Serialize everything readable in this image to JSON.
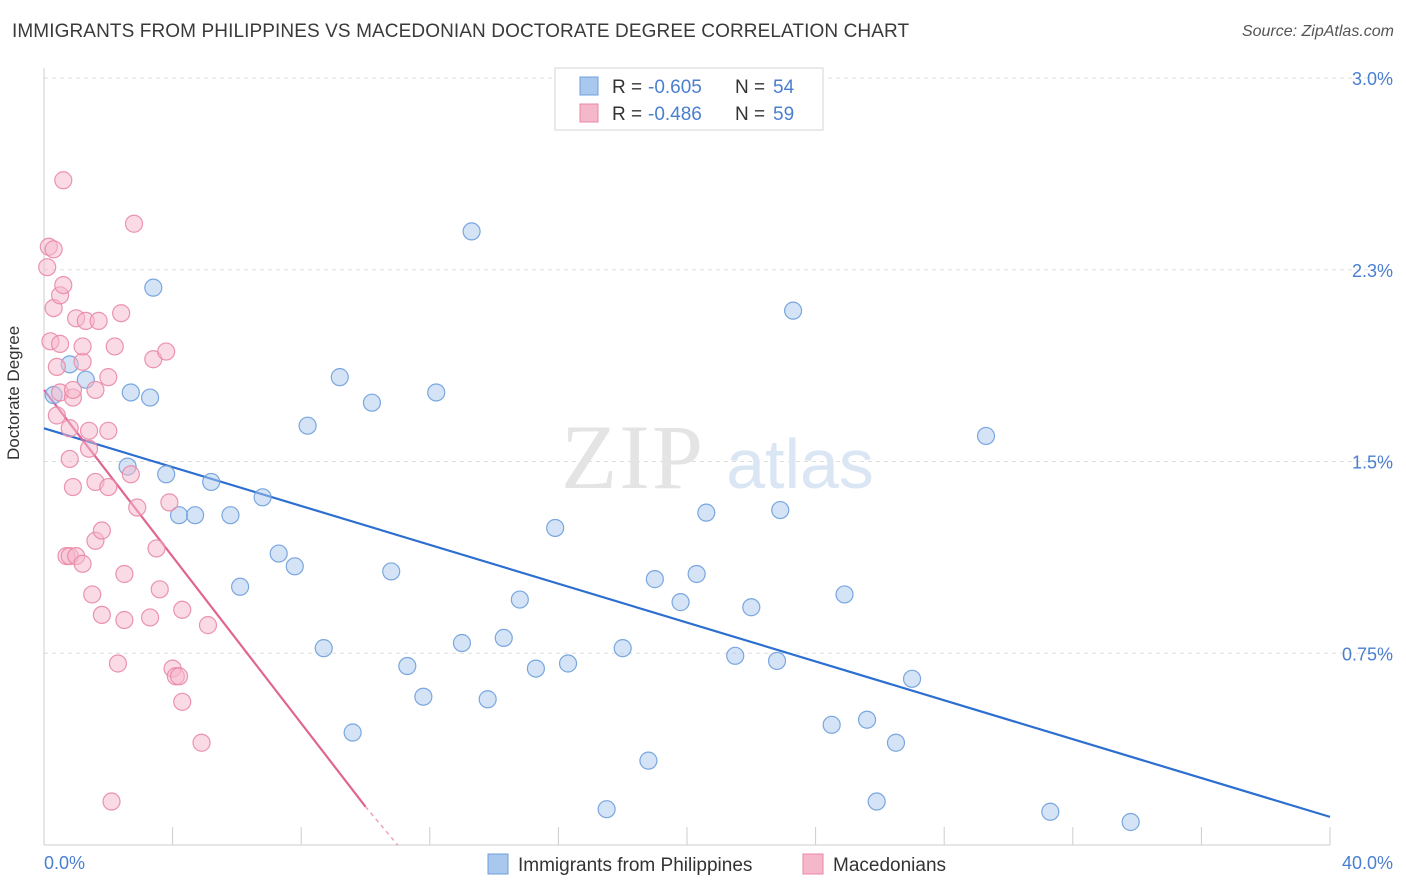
{
  "title": "IMMIGRANTS FROM PHILIPPINES VS MACEDONIAN DOCTORATE DEGREE CORRELATION CHART",
  "source": "Source: ZipAtlas.com",
  "watermark": {
    "zip": "ZIP",
    "atlas": "atlas"
  },
  "colors": {
    "blue_fill": "#a9c8ee",
    "blue_stroke": "#6d9fdc",
    "blue_line": "#2d6fd0",
    "pink_fill": "#f5b8cb",
    "pink_stroke": "#e988a6",
    "pink_line": "#e06592",
    "tick_label": "#4a7fd0",
    "grid": "#dddddd"
  },
  "legend": {
    "rows": [
      {
        "r_label": "R = ",
        "r_value": "-0.605",
        "n_label": "N = ",
        "n_value": "54"
      },
      {
        "r_label": "R = ",
        "r_value": "-0.486",
        "n_label": "N = ",
        "n_value": "59"
      }
    ]
  },
  "bottom_legend": [
    "Immigrants from Philippines",
    "Macedonians"
  ],
  "chart_data": {
    "type": "scatter",
    "title": "IMMIGRANTS FROM PHILIPPINES VS MACEDONIAN DOCTORATE DEGREE CORRELATION CHART",
    "ylabel": "Doctorate Degree",
    "xlim": [
      0,
      40
    ],
    "ylim": [
      0,
      3.0
    ],
    "x_tick_labels": [
      "0.0%",
      "40.0%"
    ],
    "y_ticks": [
      0.75,
      1.5,
      2.25,
      3.0
    ],
    "y_tick_labels": [
      "0.75%",
      "1.5%",
      "2.3%",
      "3.0%"
    ],
    "grid": true,
    "series": [
      {
        "name": "Immigrants from Philippines",
        "R": -0.605,
        "N": 54,
        "trend": [
          [
            0,
            1.63
          ],
          [
            40,
            0.11
          ]
        ],
        "points": [
          [
            0.3,
            1.76
          ],
          [
            0.8,
            1.88
          ],
          [
            1.3,
            1.82
          ],
          [
            2.6,
            1.48
          ],
          [
            2.7,
            1.77
          ],
          [
            3.3,
            1.75
          ],
          [
            3.4,
            2.18
          ],
          [
            3.8,
            1.45
          ],
          [
            4.2,
            1.29
          ],
          [
            4.7,
            1.29
          ],
          [
            5.2,
            1.42
          ],
          [
            5.8,
            1.29
          ],
          [
            6.1,
            1.01
          ],
          [
            6.8,
            1.36
          ],
          [
            7.3,
            1.14
          ],
          [
            7.8,
            1.09
          ],
          [
            8.2,
            1.64
          ],
          [
            8.7,
            0.77
          ],
          [
            9.2,
            1.83
          ],
          [
            9.6,
            0.44
          ],
          [
            10.2,
            1.73
          ],
          [
            10.8,
            1.07
          ],
          [
            11.3,
            0.7
          ],
          [
            11.8,
            0.58
          ],
          [
            12.2,
            1.77
          ],
          [
            13.0,
            0.79
          ],
          [
            13.3,
            2.4
          ],
          [
            13.8,
            0.57
          ],
          [
            14.3,
            0.81
          ],
          [
            14.8,
            0.96
          ],
          [
            15.3,
            0.69
          ],
          [
            15.9,
            1.24
          ],
          [
            16.3,
            0.71
          ],
          [
            17.5,
            0.14
          ],
          [
            18.0,
            0.77
          ],
          [
            18.8,
            0.33
          ],
          [
            19.0,
            1.04
          ],
          [
            19.8,
            0.95
          ],
          [
            20.3,
            1.06
          ],
          [
            20.6,
            1.3
          ],
          [
            21.5,
            0.74
          ],
          [
            22.0,
            0.93
          ],
          [
            22.8,
            0.72
          ],
          [
            22.9,
            1.31
          ],
          [
            23.3,
            2.09
          ],
          [
            24.5,
            0.47
          ],
          [
            24.9,
            0.98
          ],
          [
            25.6,
            0.49
          ],
          [
            25.9,
            0.17
          ],
          [
            26.5,
            0.4
          ],
          [
            27.0,
            0.65
          ],
          [
            29.3,
            1.6
          ],
          [
            31.3,
            0.13
          ],
          [
            33.8,
            0.09
          ]
        ]
      },
      {
        "name": "Macedonians",
        "R": -0.486,
        "N": 59,
        "trend": [
          [
            0,
            1.78
          ],
          [
            10,
            0.15
          ]
        ],
        "trend_dashed_to": [
          11,
          0.0
        ],
        "points": [
          [
            0.1,
            2.26
          ],
          [
            0.15,
            2.34
          ],
          [
            0.2,
            1.97
          ],
          [
            0.3,
            2.33
          ],
          [
            0.3,
            2.1
          ],
          [
            0.4,
            1.68
          ],
          [
            0.4,
            1.87
          ],
          [
            0.5,
            2.15
          ],
          [
            0.5,
            1.77
          ],
          [
            0.5,
            1.96
          ],
          [
            0.6,
            2.19
          ],
          [
            0.6,
            2.6
          ],
          [
            0.7,
            1.13
          ],
          [
            0.8,
            1.63
          ],
          [
            0.8,
            1.51
          ],
          [
            0.8,
            1.13
          ],
          [
            0.9,
            1.4
          ],
          [
            0.9,
            1.75
          ],
          [
            0.9,
            1.78
          ],
          [
            1.0,
            2.06
          ],
          [
            1.0,
            1.13
          ],
          [
            1.2,
            1.89
          ],
          [
            1.2,
            1.95
          ],
          [
            1.2,
            1.1
          ],
          [
            1.3,
            2.05
          ],
          [
            1.4,
            1.55
          ],
          [
            1.4,
            1.62
          ],
          [
            1.5,
            0.98
          ],
          [
            1.6,
            1.78
          ],
          [
            1.6,
            1.19
          ],
          [
            1.6,
            1.42
          ],
          [
            1.7,
            2.05
          ],
          [
            1.8,
            1.23
          ],
          [
            1.8,
            0.9
          ],
          [
            2.0,
            1.83
          ],
          [
            2.0,
            1.62
          ],
          [
            2.0,
            1.4
          ],
          [
            2.1,
            0.17
          ],
          [
            2.2,
            1.95
          ],
          [
            2.3,
            0.71
          ],
          [
            2.4,
            2.08
          ],
          [
            2.5,
            0.88
          ],
          [
            2.5,
            1.06
          ],
          [
            2.7,
            1.45
          ],
          [
            2.8,
            2.43
          ],
          [
            2.9,
            1.32
          ],
          [
            3.3,
            0.89
          ],
          [
            3.4,
            1.9
          ],
          [
            3.5,
            1.16
          ],
          [
            3.6,
            1.0
          ],
          [
            3.8,
            1.93
          ],
          [
            3.9,
            1.34
          ],
          [
            4.0,
            0.69
          ],
          [
            4.1,
            0.66
          ],
          [
            4.2,
            0.66
          ],
          [
            4.3,
            0.56
          ],
          [
            4.3,
            0.92
          ],
          [
            4.9,
            0.4
          ],
          [
            5.1,
            0.86
          ]
        ]
      }
    ]
  }
}
